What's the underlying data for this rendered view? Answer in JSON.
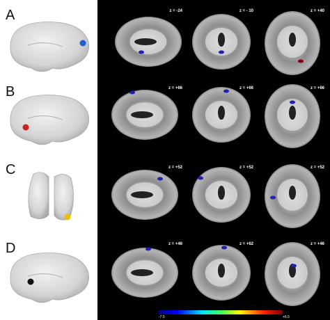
{
  "panels": [
    {
      "label": "A",
      "slices": [
        "z = -24",
        "z = - 10",
        "z = +40"
      ]
    },
    {
      "label": "B",
      "slices": [
        "z = +66",
        "z = +66",
        "z = +66"
      ]
    },
    {
      "label": "C",
      "slices": [
        "z = +52",
        "z = +52",
        "z = +52"
      ]
    },
    {
      "label": "D",
      "slices": [
        "z = +46",
        "z = +62",
        "z = +46"
      ]
    }
  ],
  "colorbar": {
    "min": "-7.5",
    "max": "+6.5"
  }
}
